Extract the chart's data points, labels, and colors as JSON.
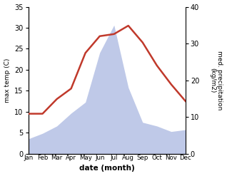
{
  "months": [
    "Jan",
    "Feb",
    "Mar",
    "Apr",
    "May",
    "Jun",
    "Jul",
    "Aug",
    "Sep",
    "Oct",
    "Nov",
    "Dec"
  ],
  "temp": [
    9.5,
    9.5,
    13.0,
    15.5,
    24.0,
    28.0,
    28.5,
    30.5,
    26.5,
    21.0,
    16.5,
    12.5
  ],
  "precip": [
    4.0,
    5.5,
    7.5,
    11.0,
    14.0,
    27.5,
    35.0,
    18.0,
    8.5,
    7.5,
    6.0,
    6.5
  ],
  "temp_color": "#c0392b",
  "precip_fill_color": "#bfc9e8",
  "ylabel_left": "max temp (C)",
  "ylabel_right": "med. precipitation\n(kg/m2)",
  "xlabel": "date (month)",
  "ylim_left": [
    0,
    35
  ],
  "ylim_right": [
    0,
    40
  ],
  "yticks_left": [
    0,
    5,
    10,
    15,
    20,
    25,
    30,
    35
  ],
  "yticks_right": [
    0,
    10,
    20,
    30,
    40
  ],
  "temp_linewidth": 1.8,
  "figsize": [
    3.18,
    2.47
  ],
  "dpi": 100
}
